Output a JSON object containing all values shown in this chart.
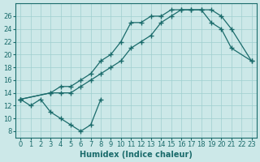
{
  "xlabel": "Humidex (Indice chaleur)",
  "background_color": "#cce8e8",
  "line_color": "#1a6b6b",
  "xlim": [
    -0.5,
    23.5
  ],
  "ylim": [
    7,
    28
  ],
  "xticks": [
    0,
    1,
    2,
    3,
    4,
    5,
    6,
    7,
    8,
    9,
    10,
    11,
    12,
    13,
    14,
    15,
    16,
    17,
    18,
    19,
    20,
    21,
    22,
    23
  ],
  "yticks": [
    8,
    10,
    12,
    14,
    16,
    18,
    20,
    22,
    24,
    26
  ],
  "curve1_x": [
    0,
    1,
    2,
    3,
    4,
    5,
    6,
    7,
    8
  ],
  "curve1_y": [
    13,
    12,
    13,
    11,
    10,
    9,
    8,
    9,
    13
  ],
  "curve2_x": [
    0,
    3,
    4,
    5,
    6,
    7,
    8,
    9,
    10,
    11,
    12,
    13,
    14,
    15,
    16,
    17,
    18,
    19,
    20,
    21,
    23
  ],
  "curve2_y": [
    13,
    14,
    15,
    15,
    16,
    17,
    19,
    20,
    22,
    25,
    25,
    26,
    26,
    27,
    27,
    27,
    27,
    25,
    24,
    21,
    19
  ],
  "curve3_x": [
    0,
    3,
    4,
    5,
    6,
    7,
    8,
    9,
    10,
    11,
    12,
    13,
    14,
    15,
    16,
    17,
    18,
    19,
    20,
    21,
    23
  ],
  "curve3_y": [
    13,
    14,
    14,
    14,
    15,
    16,
    17,
    18,
    19,
    21,
    22,
    23,
    25,
    26,
    27,
    27,
    27,
    27,
    26,
    24,
    19
  ],
  "grid_color": "#9fcfcf",
  "fontsize_tick": 6,
  "fontsize_label": 7
}
